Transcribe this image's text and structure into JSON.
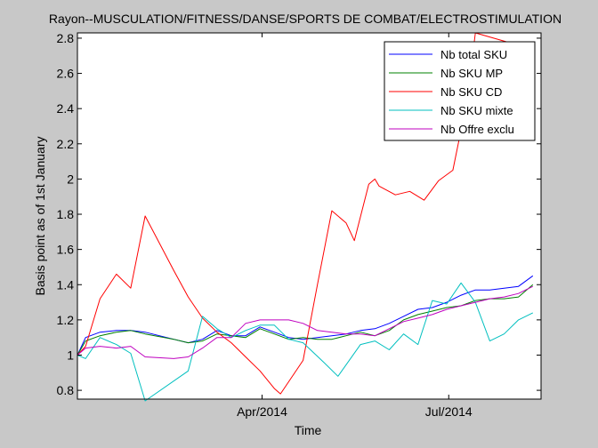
{
  "chart_data": {
    "type": "line",
    "title": "Rayon--MUSCULATION/FITNESS/DANSE/SPORTS DE COMBAT/ELECTROSTIMULATION",
    "xlabel": "Time",
    "ylabel": "Basis point as of 1st January",
    "x_type": "date",
    "xlim": [
      "2014-01-01",
      "2014-08-15"
    ],
    "ylim": [
      0.75,
      2.83
    ],
    "x_ticks": [
      {
        "date": "2014-04-01",
        "label": "Apr/2014"
      },
      {
        "date": "2014-07-01",
        "label": "Jul/2014"
      }
    ],
    "y_ticks": [
      0.8,
      1,
      1.2,
      1.4,
      1.6,
      1.8,
      2,
      2.2,
      2.4,
      2.6,
      2.8
    ],
    "y_tick_labels": [
      "0.8",
      "1",
      "1.2",
      "1.4",
      "1.6",
      "1.8",
      "2",
      "2.2",
      "2.4",
      "2.6",
      "2.8"
    ],
    "legend_position": "top-right",
    "background": "#ffffff",
    "series": [
      {
        "name": "Nb total SKU",
        "color": "#0000ff",
        "points": [
          [
            "2014-01-01",
            1.0
          ],
          [
            "2014-01-05",
            1.1
          ],
          [
            "2014-01-12",
            1.13
          ],
          [
            "2014-01-20",
            1.14
          ],
          [
            "2014-01-27",
            1.14
          ],
          [
            "2014-02-03",
            1.13
          ],
          [
            "2014-02-17",
            1.09
          ],
          [
            "2014-02-24",
            1.07
          ],
          [
            "2014-03-03",
            1.09
          ],
          [
            "2014-03-10",
            1.14
          ],
          [
            "2014-03-17",
            1.11
          ],
          [
            "2014-03-24",
            1.11
          ],
          [
            "2014-03-31",
            1.16
          ],
          [
            "2014-04-07",
            1.13
          ],
          [
            "2014-04-14",
            1.1
          ],
          [
            "2014-04-21",
            1.09
          ],
          [
            "2014-04-28",
            1.1
          ],
          [
            "2014-05-05",
            1.11
          ],
          [
            "2014-05-12",
            1.12
          ],
          [
            "2014-05-19",
            1.14
          ],
          [
            "2014-05-26",
            1.15
          ],
          [
            "2014-06-02",
            1.18
          ],
          [
            "2014-06-09",
            1.22
          ],
          [
            "2014-06-16",
            1.26
          ],
          [
            "2014-06-23",
            1.27
          ],
          [
            "2014-06-30",
            1.3
          ],
          [
            "2014-07-07",
            1.34
          ],
          [
            "2014-07-14",
            1.37
          ],
          [
            "2014-07-21",
            1.37
          ],
          [
            "2014-07-28",
            1.38
          ],
          [
            "2014-08-04",
            1.39
          ],
          [
            "2014-08-11",
            1.45
          ]
        ]
      },
      {
        "name": "Nb SKU MP",
        "color": "#008000",
        "points": [
          [
            "2014-01-01",
            1.0
          ],
          [
            "2014-01-05",
            1.08
          ],
          [
            "2014-01-12",
            1.11
          ],
          [
            "2014-01-20",
            1.13
          ],
          [
            "2014-01-27",
            1.14
          ],
          [
            "2014-02-03",
            1.12
          ],
          [
            "2014-02-17",
            1.09
          ],
          [
            "2014-02-24",
            1.07
          ],
          [
            "2014-03-03",
            1.08
          ],
          [
            "2014-03-10",
            1.12
          ],
          [
            "2014-03-17",
            1.11
          ],
          [
            "2014-03-24",
            1.1
          ],
          [
            "2014-03-31",
            1.15
          ],
          [
            "2014-04-07",
            1.12
          ],
          [
            "2014-04-14",
            1.09
          ],
          [
            "2014-04-21",
            1.1
          ],
          [
            "2014-04-28",
            1.09
          ],
          [
            "2014-05-05",
            1.09
          ],
          [
            "2014-05-12",
            1.11
          ],
          [
            "2014-05-19",
            1.13
          ],
          [
            "2014-05-26",
            1.11
          ],
          [
            "2014-06-02",
            1.14
          ],
          [
            "2014-06-09",
            1.2
          ],
          [
            "2014-06-16",
            1.23
          ],
          [
            "2014-06-23",
            1.25
          ],
          [
            "2014-06-30",
            1.27
          ],
          [
            "2014-07-07",
            1.28
          ],
          [
            "2014-07-14",
            1.31
          ],
          [
            "2014-07-21",
            1.32
          ],
          [
            "2014-07-28",
            1.32
          ],
          [
            "2014-08-04",
            1.33
          ],
          [
            "2014-08-11",
            1.4
          ]
        ]
      },
      {
        "name": "Nb SKU CD",
        "color": "#ff0000",
        "points": [
          [
            "2014-01-01",
            1.0
          ],
          [
            "2014-01-05",
            1.05
          ],
          [
            "2014-01-12",
            1.32
          ],
          [
            "2014-01-20",
            1.46
          ],
          [
            "2014-01-27",
            1.38
          ],
          [
            "2014-02-03",
            1.79
          ],
          [
            "2014-02-17",
            1.48
          ],
          [
            "2014-02-24",
            1.33
          ],
          [
            "2014-03-03",
            1.21
          ],
          [
            "2014-03-10",
            1.13
          ],
          [
            "2014-03-17",
            1.07
          ],
          [
            "2014-03-24",
            0.99
          ],
          [
            "2014-03-31",
            0.91
          ],
          [
            "2014-04-07",
            0.81
          ],
          [
            "2014-04-10",
            0.78
          ],
          [
            "2014-04-21",
            0.97
          ],
          [
            "2014-04-28",
            1.4
          ],
          [
            "2014-05-05",
            1.82
          ],
          [
            "2014-05-12",
            1.75
          ],
          [
            "2014-05-16",
            1.65
          ],
          [
            "2014-05-23",
            1.97
          ],
          [
            "2014-05-26",
            2.0
          ],
          [
            "2014-05-28",
            1.96
          ],
          [
            "2014-06-05",
            1.91
          ],
          [
            "2014-06-12",
            1.93
          ],
          [
            "2014-06-19",
            1.88
          ],
          [
            "2014-06-26",
            1.99
          ],
          [
            "2014-07-03",
            2.05
          ],
          [
            "2014-07-10",
            2.45
          ],
          [
            "2014-07-14",
            2.83
          ],
          [
            "2014-08-04",
            2.76
          ],
          [
            "2014-08-11",
            2.68
          ]
        ]
      },
      {
        "name": "Nb SKU mixte",
        "color": "#00bfbf",
        "points": [
          [
            "2014-01-01",
            1.0
          ],
          [
            "2014-01-05",
            0.98
          ],
          [
            "2014-01-12",
            1.1
          ],
          [
            "2014-01-20",
            1.06
          ],
          [
            "2014-01-27",
            1.01
          ],
          [
            "2014-02-03",
            0.74
          ],
          [
            "2014-02-24",
            0.91
          ],
          [
            "2014-03-03",
            1.22
          ],
          [
            "2014-03-10",
            1.15
          ],
          [
            "2014-03-17",
            1.1
          ],
          [
            "2014-03-24",
            1.14
          ],
          [
            "2014-03-31",
            1.17
          ],
          [
            "2014-04-07",
            1.17
          ],
          [
            "2014-04-14",
            1.09
          ],
          [
            "2014-04-21",
            1.07
          ],
          [
            "2014-05-01",
            0.96
          ],
          [
            "2014-05-08",
            0.88
          ],
          [
            "2014-05-19",
            1.06
          ],
          [
            "2014-05-26",
            1.08
          ],
          [
            "2014-06-02",
            1.03
          ],
          [
            "2014-06-09",
            1.12
          ],
          [
            "2014-06-16",
            1.06
          ],
          [
            "2014-06-23",
            1.31
          ],
          [
            "2014-06-30",
            1.29
          ],
          [
            "2014-07-07",
            1.41
          ],
          [
            "2014-07-14",
            1.3
          ],
          [
            "2014-07-21",
            1.08
          ],
          [
            "2014-07-28",
            1.12
          ],
          [
            "2014-08-04",
            1.2
          ],
          [
            "2014-08-11",
            1.24
          ]
        ]
      },
      {
        "name": "Nb Offre exclu",
        "color": "#bf00bf",
        "points": [
          [
            "2014-01-01",
            1.0
          ],
          [
            "2014-01-05",
            1.04
          ],
          [
            "2014-01-12",
            1.05
          ],
          [
            "2014-01-20",
            1.04
          ],
          [
            "2014-01-27",
            1.05
          ],
          [
            "2014-02-03",
            0.99
          ],
          [
            "2014-02-17",
            0.98
          ],
          [
            "2014-02-24",
            0.99
          ],
          [
            "2014-03-03",
            1.04
          ],
          [
            "2014-03-10",
            1.1
          ],
          [
            "2014-03-17",
            1.1
          ],
          [
            "2014-03-24",
            1.18
          ],
          [
            "2014-03-31",
            1.2
          ],
          [
            "2014-04-07",
            1.2
          ],
          [
            "2014-04-14",
            1.2
          ],
          [
            "2014-04-21",
            1.18
          ],
          [
            "2014-04-28",
            1.14
          ],
          [
            "2014-05-05",
            1.13
          ],
          [
            "2014-05-12",
            1.12
          ],
          [
            "2014-05-19",
            1.12
          ],
          [
            "2014-05-26",
            1.11
          ],
          [
            "2014-06-02",
            1.15
          ],
          [
            "2014-06-09",
            1.19
          ],
          [
            "2014-06-16",
            1.21
          ],
          [
            "2014-06-23",
            1.23
          ],
          [
            "2014-06-30",
            1.26
          ],
          [
            "2014-07-07",
            1.28
          ],
          [
            "2014-07-14",
            1.3
          ],
          [
            "2014-07-21",
            1.32
          ],
          [
            "2014-07-28",
            1.33
          ],
          [
            "2014-08-04",
            1.35
          ],
          [
            "2014-08-11",
            1.39
          ]
        ]
      }
    ]
  }
}
